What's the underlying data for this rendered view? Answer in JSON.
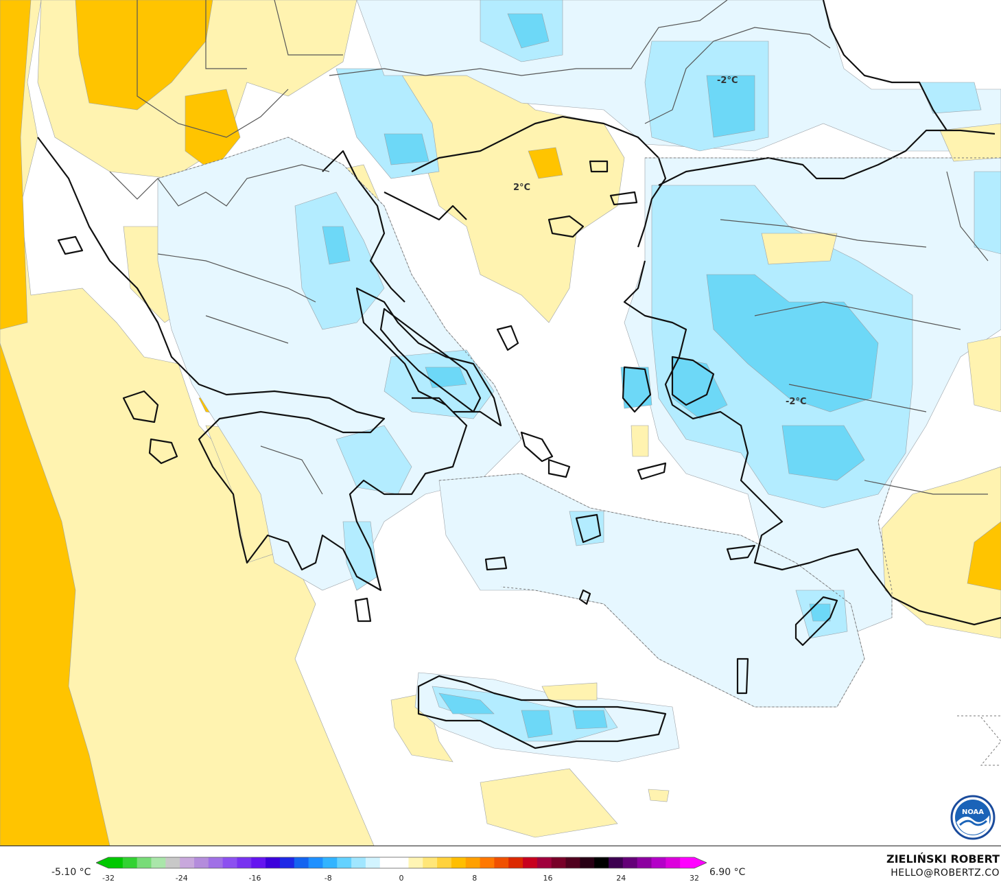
{
  "map": {
    "contour_labels": [
      "2°C",
      "-2°C",
      "-2°C"
    ],
    "colors": {
      "sea": "#ffffff",
      "land_outline": "#111111",
      "border": "#555555",
      "warm_1": "#fff3b0",
      "warm_2": "#ffe27a",
      "warm_3": "#ffc400",
      "hot": "#f08a10",
      "cool_1": "#e6f7ff",
      "cool_2": "#b3ecff",
      "cool_3": "#6dd8f7"
    }
  },
  "legend": {
    "min_label": "-5.10 °C",
    "max_label": "6.90 °C",
    "ticks": [
      "-32",
      "-24",
      "-16",
      "-8",
      "0",
      "8",
      "16",
      "24",
      "32"
    ],
    "scale_min": -32,
    "scale_max": 32,
    "colors": [
      "#00c800",
      "#32d232",
      "#78dc78",
      "#aae6aa",
      "#c8c8c8",
      "#c8a8dc",
      "#b48cdc",
      "#a070e6",
      "#8c50f0",
      "#7832f0",
      "#6414f0",
      "#3c00dc",
      "#1e28e6",
      "#1464f0",
      "#1e90ff",
      "#32b4ff",
      "#64d2ff",
      "#a0e6ff",
      "#d2f4ff",
      "#ffffff",
      "#ffffff",
      "#fff5b4",
      "#ffe678",
      "#ffd23c",
      "#ffbe00",
      "#ffa000",
      "#ff7800",
      "#f05000",
      "#dc2800",
      "#c8001e",
      "#a0003c",
      "#780028",
      "#50001e",
      "#280014",
      "#000000",
      "#3c0050",
      "#640078",
      "#8c00a0",
      "#b400c8",
      "#dc00dc",
      "#ff00ff"
    ]
  },
  "credits": {
    "author": "ZIELIŃSKI ROBERT",
    "email": "HELLO@ROBERTZ.CO",
    "logo_text": "NOAA"
  }
}
